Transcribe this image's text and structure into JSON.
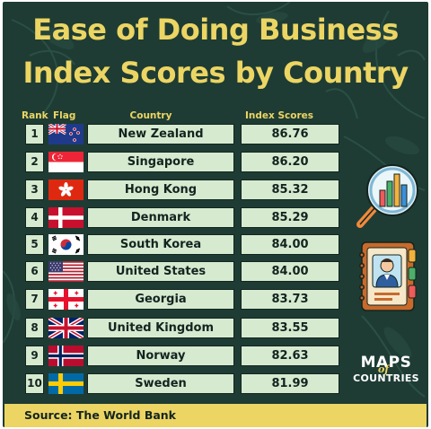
{
  "title": {
    "line1": "Ease of Doing Business",
    "line2": "Index Scores by Country"
  },
  "headers": {
    "rank": "Rank",
    "flag": "Flag",
    "country": "Country",
    "score": "Index Scores"
  },
  "source": "Source: The World Bank",
  "logo": {
    "line1": "MAPS",
    "of": "of",
    "line2": "COUNTRIES"
  },
  "colors": {
    "background": "#1e3c34",
    "accent": "#ecd563",
    "cell": "#d6ead0",
    "text": "#13241f"
  },
  "icons": [
    "magnifier-chart-icon",
    "profile-folder-icon"
  ],
  "chart_data": {
    "type": "table",
    "title": "Ease of Doing Business Index Scores by Country",
    "columns": [
      "Rank",
      "Flag",
      "Country",
      "Index Scores"
    ],
    "rows": [
      {
        "rank": "1",
        "flag": "new-zealand-flag-icon",
        "country": "New Zealand",
        "score": "86.76"
      },
      {
        "rank": "2",
        "flag": "singapore-flag-icon",
        "country": "Singapore",
        "score": "86.20"
      },
      {
        "rank": "3",
        "flag": "hong-kong-flag-icon",
        "country": "Hong Kong",
        "score": "85.32"
      },
      {
        "rank": "4",
        "flag": "denmark-flag-icon",
        "country": "Denmark",
        "score": "85.29"
      },
      {
        "rank": "5",
        "flag": "south-korea-flag-icon",
        "country": "South Korea",
        "score": "84.00"
      },
      {
        "rank": "6",
        "flag": "united-states-flag-icon",
        "country": "United States",
        "score": "84.00"
      },
      {
        "rank": "7",
        "flag": "georgia-flag-icon",
        "country": "Georgia",
        "score": "83.73"
      },
      {
        "rank": "8",
        "flag": "united-kingdom-flag-icon",
        "country": "United Kingdom",
        "score": "83.55"
      },
      {
        "rank": "9",
        "flag": "norway-flag-icon",
        "country": "Norway",
        "score": "82.63"
      },
      {
        "rank": "10",
        "flag": "sweden-flag-icon",
        "country": "Sweden",
        "score": "81.99"
      }
    ]
  }
}
